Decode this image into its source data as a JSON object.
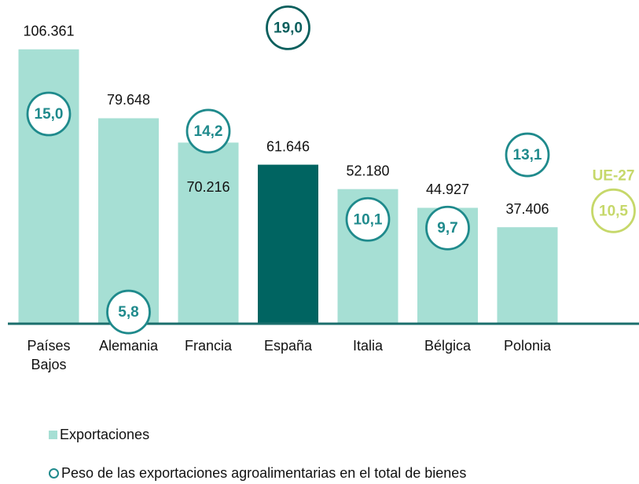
{
  "chart_data": {
    "type": "bar",
    "categories": [
      "Países Bajos",
      "Alemania",
      "Francia",
      "España",
      "Italia",
      "Bélgica",
      "Polonia"
    ],
    "series": [
      {
        "name": "Exportaciones",
        "color": "#a6dfd4",
        "colors": [
          "#a6dfd4",
          "#a6dfd4",
          "#a6dfd4",
          "#006461",
          "#a6dfd4",
          "#a6dfd4",
          "#a6dfd4"
        ],
        "values": [
          106361,
          79648,
          70216,
          61646,
          52180,
          44927,
          37406
        ],
        "value_labels": [
          "106.361",
          "79.648",
          "70.216",
          "61.646",
          "52.180",
          "44.927",
          "37.406"
        ]
      },
      {
        "name": "Peso de las exportaciones agroalimentarias en el total de bienes",
        "type": "scatter",
        "axis": "y2",
        "color": "#1f8a8c",
        "colors": [
          "#1f8a8c",
          "#1f8a8c",
          "#1f8a8c",
          "#0b5f5d",
          "#1f8a8c",
          "#1f8a8c",
          "#1f8a8c"
        ],
        "values": [
          15.0,
          5.8,
          14.2,
          19.0,
          10.1,
          9.7,
          13.1
        ],
        "value_labels": [
          "15,0",
          "5,8",
          "14,2",
          "19,0",
          "10,1",
          "9,7",
          "13,1"
        ]
      }
    ],
    "reference": {
      "label": "UE-27",
      "value": 10.5,
      "value_label": "10,5",
      "color": "#c6d86a"
    },
    "ylim": [
      0,
      120000
    ],
    "y2lim": [
      5,
      20
    ],
    "legend": "bottom-left"
  }
}
